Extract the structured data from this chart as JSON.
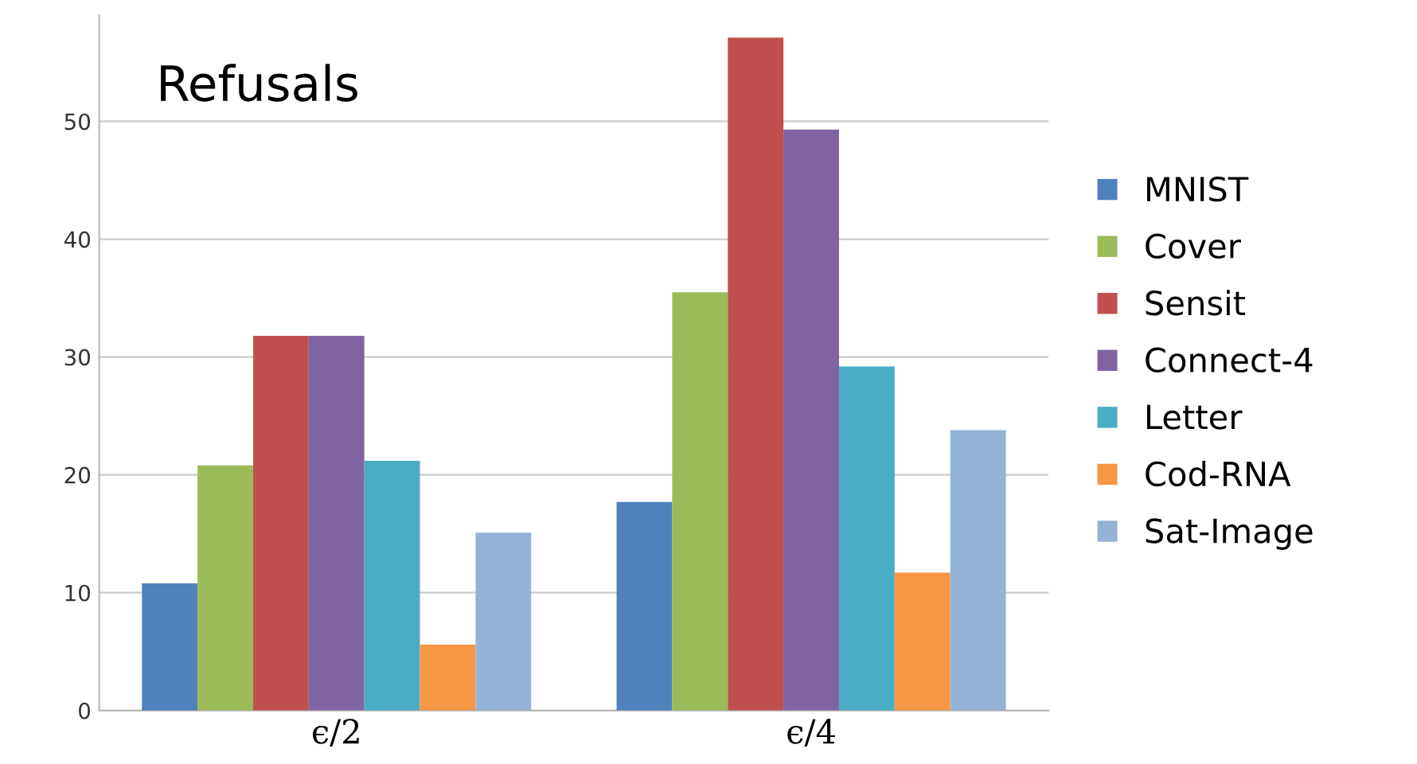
{
  "chart_data": {
    "type": "bar",
    "title": "Refusals",
    "categories": [
      "ϵ/2",
      "ϵ/4"
    ],
    "series": [
      {
        "name": "MNIST",
        "color": "#4f81bd",
        "values": [
          10.8,
          17.7
        ]
      },
      {
        "name": "Cover",
        "color": "#9bbb59",
        "values": [
          20.8,
          35.5
        ]
      },
      {
        "name": "Sensit",
        "color": "#c0504d",
        "values": [
          31.8,
          57.1
        ]
      },
      {
        "name": "Connect-4",
        "color": "#8064a2",
        "values": [
          31.8,
          49.3
        ]
      },
      {
        "name": "Letter",
        "color": "#4bacc6",
        "values": [
          21.2,
          29.2
        ]
      },
      {
        "name": "Cod-RNA",
        "color": "#f79646",
        "values": [
          5.6,
          11.7
        ]
      },
      {
        "name": "Sat-Image",
        "color": "#95b3d7",
        "values": [
          15.1,
          23.8
        ]
      }
    ],
    "ylim": [
      0,
      59
    ],
    "yticks": [
      0,
      10,
      20,
      30,
      40,
      50
    ],
    "grid": "y",
    "legend": "right"
  }
}
